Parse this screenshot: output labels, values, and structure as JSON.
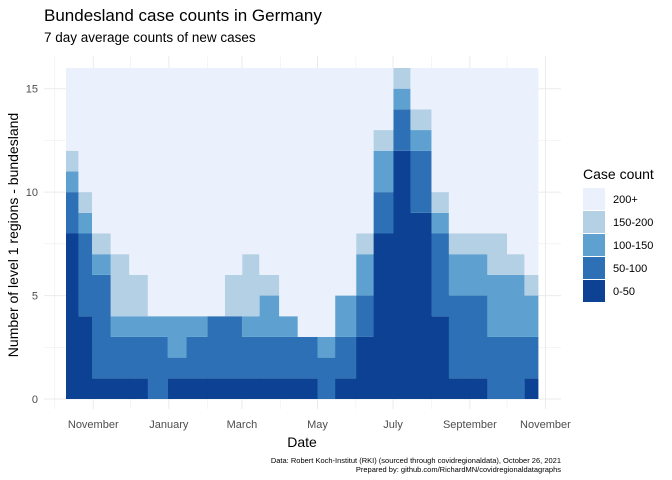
{
  "chart_data": {
    "type": "area",
    "stacked": true,
    "title": "Bundesland case counts in Germany",
    "subtitle": "7 day average counts of new cases",
    "xlabel": "Date",
    "ylabel": "Number of level 1 regions - bundesland",
    "x_ticks": [
      "November",
      "January",
      "March",
      "May",
      "July",
      "September",
      "November"
    ],
    "y_ticks": [
      0,
      5,
      10,
      15
    ],
    "ylim": [
      0,
      16
    ],
    "grid": true,
    "legend_position": "right",
    "legend_title": "Case count",
    "legend": [
      {
        "label": "200+",
        "color": "#eaf1fc"
      },
      {
        "label": "150-200",
        "color": "#b3d0e5"
      },
      {
        "label": "100-150",
        "color": "#5ea1d0"
      },
      {
        "label": "50-100",
        "color": "#2d70b5"
      },
      {
        "label": "0-50",
        "color": "#0c4193"
      }
    ],
    "x": [
      "2020-10-10",
      "2020-10-20",
      "2020-10-31",
      "2020-11-15",
      "2020-11-30",
      "2020-12-15",
      "2020-12-31",
      "2021-01-15",
      "2021-02-01",
      "2021-02-15",
      "2021-03-01",
      "2021-03-15",
      "2021-03-31",
      "2021-04-15",
      "2021-05-01",
      "2021-05-15",
      "2021-06-01",
      "2021-06-15",
      "2021-07-01",
      "2021-07-15",
      "2021-08-01",
      "2021-08-15",
      "2021-09-01",
      "2021-09-15",
      "2021-10-01",
      "2021-10-15",
      "2021-10-26"
    ],
    "series": [
      {
        "name": "0-50",
        "values": [
          8,
          4,
          1,
          1,
          1,
          0,
          1,
          1,
          1,
          1,
          1,
          1,
          1,
          1,
          0,
          1,
          3,
          8,
          12,
          9,
          4,
          1,
          1,
          0,
          0,
          1,
          1
        ]
      },
      {
        "name": "50-100",
        "values": [
          2,
          4,
          5,
          2,
          2,
          3,
          1,
          2,
          3,
          3,
          2,
          2,
          2,
          2,
          2,
          2,
          2,
          2,
          2,
          3,
          4,
          4,
          4,
          3,
          3,
          2,
          1
        ]
      },
      {
        "name": "100-150",
        "values": [
          1,
          1,
          1,
          1,
          1,
          1,
          2,
          1,
          0,
          0,
          1,
          2,
          1,
          0,
          1,
          2,
          2,
          2,
          1,
          1,
          1,
          2,
          2,
          3,
          3,
          2,
          1
        ]
      },
      {
        "name": "150-200",
        "values": [
          1,
          1,
          1,
          3,
          2,
          0,
          0,
          0,
          0,
          2,
          3,
          1,
          0,
          0,
          0,
          0,
          1,
          1,
          1,
          1,
          1,
          1,
          1,
          2,
          1,
          1,
          1
        ]
      },
      {
        "name": "200+",
        "values": [
          4,
          6,
          8,
          9,
          10,
          12,
          12,
          12,
          12,
          10,
          9,
          10,
          12,
          13,
          13,
          11,
          8,
          3,
          0,
          2,
          6,
          8,
          8,
          8,
          9,
          10,
          12
        ]
      }
    ],
    "caption_line1": "Data: Robert Koch-Institut (RKI) (sourced through covidregionaldata), October 26, 2021",
    "caption_line2": "Prepared by: github.com/RichardMN/covidregionaldatagraphs"
  }
}
